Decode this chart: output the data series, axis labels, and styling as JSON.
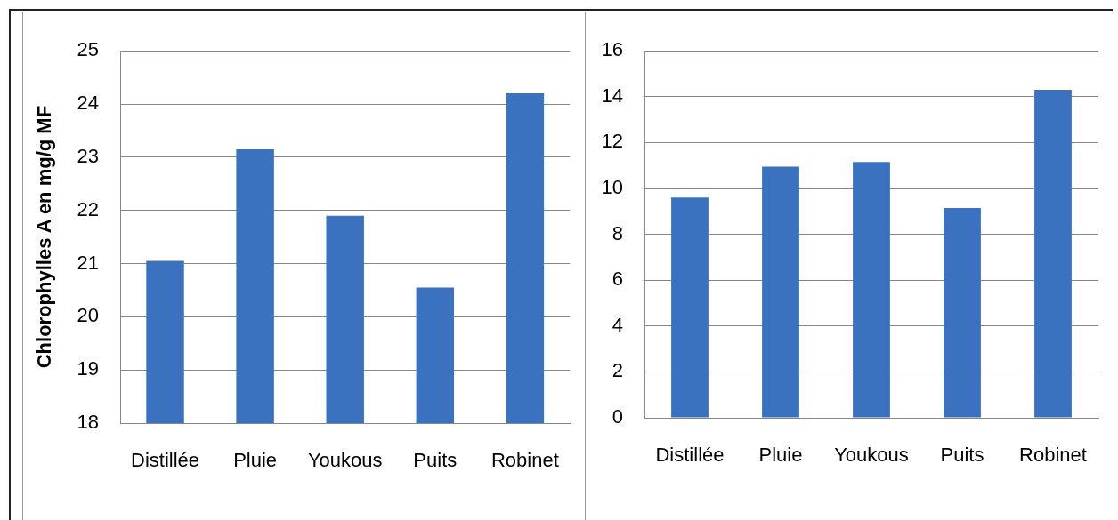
{
  "chart_data": [
    {
      "type": "bar",
      "ylabel": "Chlorophylles A en mg/g MF",
      "categories": [
        "Distillée",
        "Pluie",
        "Youkous",
        "Puits",
        "Robinet"
      ],
      "values": [
        21.05,
        23.15,
        21.9,
        20.55,
        24.2
      ],
      "color": "#3a72c0",
      "ylim": [
        18,
        25
      ],
      "yticks": [
        18,
        19,
        20,
        21,
        22,
        23,
        24,
        25
      ],
      "grid": "y"
    },
    {
      "type": "bar",
      "categories": [
        "Distillée",
        "Pluie",
        "Youkous",
        "Puits",
        "Robinet"
      ],
      "values": [
        9.6,
        10.95,
        11.15,
        9.15,
        14.3
      ],
      "color": "#3a72c0",
      "ylim": [
        0,
        16
      ],
      "yticks": [
        0,
        2,
        4,
        6,
        8,
        10,
        12,
        14,
        16
      ],
      "grid": "y"
    }
  ]
}
